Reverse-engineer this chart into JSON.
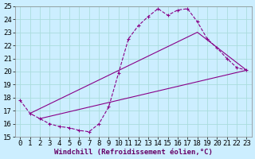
{
  "title": "",
  "xlabel": "Windchill (Refroidissement éolien,°C)",
  "background_color": "#cceeff",
  "grid_color": "#aadddd",
  "line_color": "#880088",
  "xlim": [
    -0.5,
    23.5
  ],
  "ylim": [
    15,
    25
  ],
  "xticks": [
    0,
    1,
    2,
    3,
    4,
    5,
    6,
    7,
    8,
    9,
    10,
    11,
    12,
    13,
    14,
    15,
    16,
    17,
    18,
    19,
    20,
    21,
    22,
    23
  ],
  "yticks": [
    15,
    16,
    17,
    18,
    19,
    20,
    21,
    22,
    23,
    24,
    25
  ],
  "curve_x": [
    0,
    1,
    2,
    3,
    4,
    5,
    6,
    7,
    8,
    9,
    10,
    11,
    12,
    13,
    14,
    15,
    16,
    17,
    18,
    19,
    20,
    21,
    22,
    23
  ],
  "curve_y": [
    17.8,
    16.8,
    16.4,
    16.0,
    15.8,
    15.7,
    15.5,
    15.4,
    16.0,
    17.3,
    19.9,
    22.5,
    23.5,
    24.2,
    24.8,
    24.3,
    24.7,
    24.8,
    23.8,
    22.5,
    21.8,
    21.0,
    20.3,
    20.1
  ],
  "upper_line_x": [
    1,
    18,
    23
  ],
  "upper_line_y": [
    16.8,
    23.0,
    20.1
  ],
  "lower_line_x": [
    2,
    23
  ],
  "lower_line_y": [
    16.4,
    20.1
  ],
  "font_size": 6.5
}
